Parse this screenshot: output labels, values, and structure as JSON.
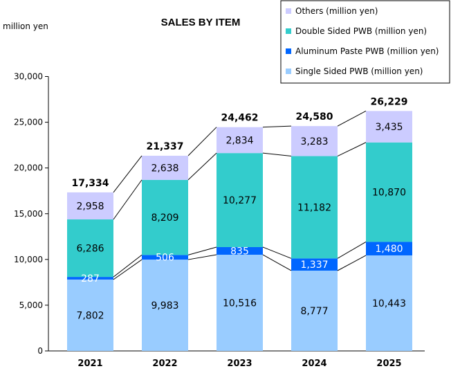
{
  "chart_data": {
    "type": "bar",
    "stacked": true,
    "title": "SALES BY ITEM",
    "ylabel": "million yen",
    "xlabel": "",
    "ylim": [
      0,
      30000
    ],
    "yticks": [
      "0",
      "5,000",
      "10,000",
      "15,000",
      "20,000",
      "25,000",
      "30,000"
    ],
    "categories": [
      "2021",
      "2022",
      "2023",
      "2024",
      "2025"
    ],
    "series": [
      {
        "name": "Single Sided PWB (million yen)",
        "color": "#99CCFF",
        "label_color": "#000000",
        "values": [
          7802,
          9983,
          10516,
          8777,
          10443
        ],
        "labels": [
          "7,802",
          "9,983",
          "10,516",
          "8,777",
          "10,443"
        ]
      },
      {
        "name": "Aluminum Paste PWB (million yen)",
        "color": "#0066FF",
        "label_color": "#FFFFFF",
        "values": [
          287,
          506,
          835,
          1337,
          1480
        ],
        "labels": [
          "287",
          "506",
          "835",
          "1,337",
          "1,480"
        ]
      },
      {
        "name": "Double Sided PWB (million yen)",
        "color": "#33CCCC",
        "label_color": "#000000",
        "values": [
          6286,
          8209,
          10277,
          11182,
          10870
        ],
        "labels": [
          "6,286",
          "8,209",
          "10,277",
          "11,182",
          "10,870"
        ]
      },
      {
        "name": "Others (million yen)",
        "color": "#CCCCFF",
        "label_color": "#000000",
        "values": [
          2958,
          2638,
          2834,
          3283,
          3435
        ],
        "labels": [
          "2,958",
          "2,638",
          "2,834",
          "3,283",
          "3,435"
        ]
      }
    ],
    "totals": [
      "17,334",
      "21,337",
      "24,462",
      "24,580",
      "26,229"
    ],
    "legend_order": [
      3,
      2,
      1,
      0
    ],
    "legend_position": "top-right",
    "grid": false,
    "series_lines": true
  }
}
